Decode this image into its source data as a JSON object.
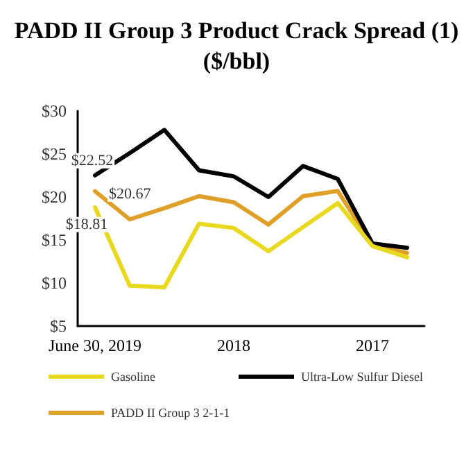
{
  "chart_data": {
    "type": "line",
    "title": "PADD II Group 3 Product Crack Spread (1)\n($/bbl)",
    "categories": [
      "June 30, 2019",
      null,
      null,
      null,
      "2018",
      null,
      null,
      null,
      "2017",
      null
    ],
    "series": [
      {
        "name": "Gasoline",
        "color": "#e8d81e",
        "values": [
          18.81,
          9.7,
          9.5,
          16.9,
          16.4,
          13.7,
          16.5,
          19.3,
          14.3,
          13.0
        ],
        "value_labels": [
          "$18.81",
          null,
          null,
          null,
          null,
          null,
          null,
          null,
          null,
          null
        ]
      },
      {
        "name": "Ultra-Low Sulfur Diesel",
        "color": "#000000",
        "values": [
          22.52,
          25.1,
          27.8,
          23.1,
          22.4,
          20.0,
          23.6,
          22.1,
          14.6,
          14.1
        ],
        "value_labels": [
          "$22.52",
          null,
          null,
          null,
          null,
          null,
          null,
          null,
          null,
          null
        ]
      },
      {
        "name": "PADD II Group 3 2-1-1",
        "color": "#dfa02a",
        "values": [
          20.67,
          17.4,
          18.7,
          20.1,
          19.4,
          16.8,
          20.1,
          20.7,
          14.4,
          13.5
        ],
        "value_labels": [
          "$20.67",
          null,
          null,
          null,
          null,
          null,
          null,
          null,
          null,
          null
        ]
      }
    ],
    "ylim": [
      5,
      30
    ],
    "yticks": [
      {
        "value": 5,
        "label": "$5"
      },
      {
        "value": 10,
        "label": "$10"
      },
      {
        "value": 15,
        "label": "$15"
      },
      {
        "value": 20,
        "label": "$20"
      },
      {
        "value": 25,
        "label": "$25"
      },
      {
        "value": 30,
        "label": "$30"
      }
    ],
    "grid": false,
    "legend": "bottom",
    "marker": "none",
    "line_style": "solid"
  }
}
